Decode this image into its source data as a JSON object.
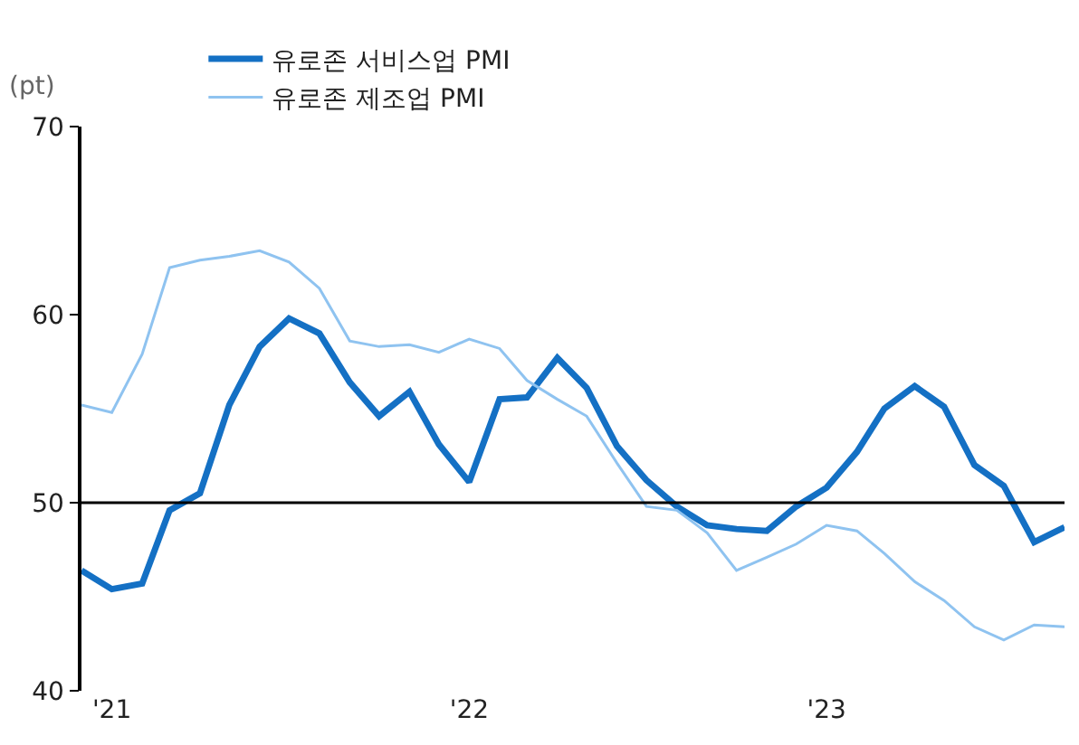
{
  "chart_data": {
    "type": "line",
    "ylabel": "(pt)",
    "x": [
      "2020-12",
      "2021-01",
      "2021-02",
      "2021-03",
      "2021-04",
      "2021-05",
      "2021-06",
      "2021-07",
      "2021-08",
      "2021-09",
      "2021-10",
      "2021-11",
      "2021-12",
      "2022-01",
      "2022-02",
      "2022-03",
      "2022-04",
      "2022-05",
      "2022-06",
      "2022-07",
      "2022-08",
      "2022-09",
      "2022-10",
      "2022-11",
      "2022-12",
      "2023-01",
      "2023-02",
      "2023-03",
      "2023-04",
      "2023-05",
      "2023-06",
      "2023-07",
      "2023-08",
      "2023-09"
    ],
    "series": [
      {
        "name": "유로존 서비스업 PMI",
        "color": "#1470c4",
        "values": [
          46.4,
          45.4,
          45.7,
          49.6,
          50.5,
          55.2,
          58.3,
          59.8,
          59.0,
          56.4,
          54.6,
          55.9,
          53.1,
          51.1,
          55.5,
          55.6,
          57.7,
          56.1,
          53.0,
          51.2,
          49.8,
          48.8,
          48.6,
          48.5,
          49.8,
          50.8,
          52.7,
          55.0,
          56.2,
          55.1,
          52.0,
          50.9,
          47.9,
          48.7
        ]
      },
      {
        "name": "유로존 제조업 PMI",
        "color": "#8fc3f0",
        "values": [
          55.2,
          54.8,
          57.9,
          62.5,
          62.9,
          63.1,
          63.4,
          62.8,
          61.4,
          58.6,
          58.3,
          58.4,
          58.0,
          58.7,
          58.2,
          56.5,
          55.5,
          54.6,
          52.1,
          49.8,
          49.6,
          48.4,
          46.4,
          47.1,
          47.8,
          48.8,
          48.5,
          47.3,
          45.8,
          44.8,
          43.4,
          42.7,
          43.5,
          43.4
        ]
      }
    ],
    "xlim": [
      "2020-12",
      "2023-09"
    ],
    "xticks": [
      {
        "value": "2021-01",
        "label": "'21"
      },
      {
        "value": "2022-01",
        "label": "'22"
      },
      {
        "value": "2023-01",
        "label": "'23"
      }
    ],
    "ylim": [
      40,
      70
    ],
    "yticks": [
      40,
      50,
      60,
      70
    ],
    "ref_lines": [
      {
        "axis": "y",
        "value": 50,
        "color": "#000000"
      }
    ],
    "grid": false,
    "legend": "top left",
    "marker": "none",
    "line_style": "solid"
  }
}
